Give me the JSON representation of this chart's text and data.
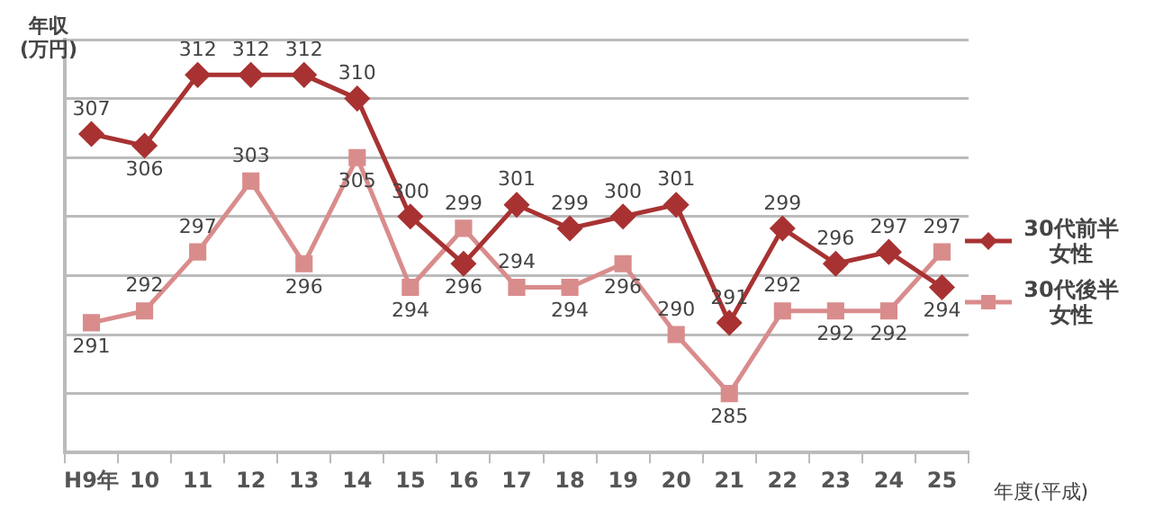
{
  "chart_data": {
    "type": "line",
    "ylabel": "年収(万円)",
    "xlabel": "年度(平成)",
    "categories": [
      "H9年",
      "10",
      "11",
      "12",
      "13",
      "14",
      "15",
      "16",
      "17",
      "18",
      "19",
      "20",
      "21",
      "22",
      "23",
      "24",
      "25"
    ],
    "series": [
      {
        "name": "30代前半女性",
        "color": "#a83232",
        "marker": "diamond",
        "values": [
          307,
          306,
          312,
          312,
          312,
          310,
          300,
          296,
          301,
          299,
          300,
          301,
          291,
          299,
          296,
          297,
          294
        ]
      },
      {
        "name": "30代後半女性",
        "color": "#d98c8c",
        "marker": "square",
        "values": [
          291,
          292,
          297,
          303,
          296,
          305,
          294,
          299,
          294,
          294,
          296,
          290,
          285,
          292,
          292,
          292,
          297
        ]
      }
    ],
    "ylim": [
      280,
      315
    ],
    "yticks": [
      {
        "value": 280,
        "label": null
      },
      {
        "value": 285,
        "label": null
      },
      {
        "value": 290,
        "label": null
      },
      {
        "value": 295,
        "label": null
      },
      {
        "value": 300,
        "label": null
      },
      {
        "value": 305,
        "label": null
      },
      {
        "value": 310,
        "label": null
      },
      {
        "value": 315,
        "label": null
      }
    ],
    "grid": "y",
    "legend": "right",
    "data_labels": true,
    "tick_labels": "x",
    "line_style": "solid"
  }
}
